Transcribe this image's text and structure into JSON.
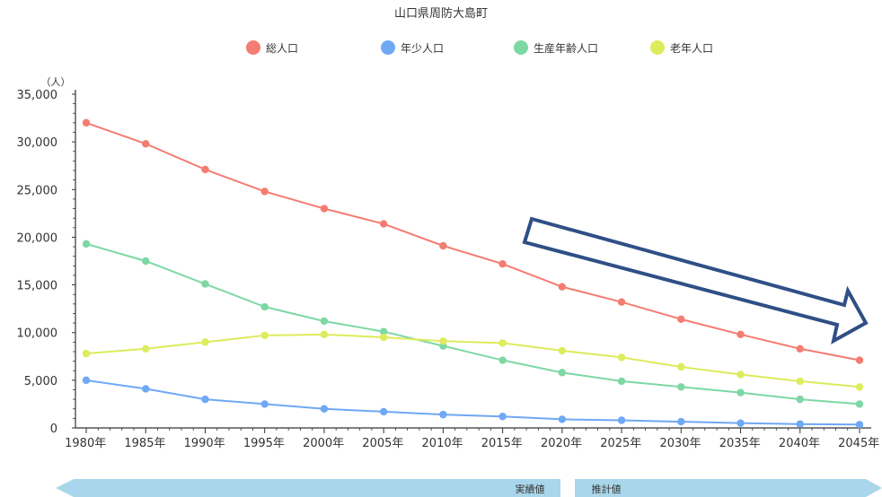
{
  "chart_data": {
    "type": "line",
    "title": "山口県周防大島町",
    "ylabel": "（人）",
    "xlabel": "",
    "ylim": [
      0,
      35000
    ],
    "yticks": [
      "0",
      "5,000",
      "10,000",
      "15,000",
      "20,000",
      "25,000",
      "30,000",
      "35,000"
    ],
    "categories": [
      "1980年",
      "1985年",
      "1990年",
      "1995年",
      "2000年",
      "2005年",
      "2010年",
      "2015年",
      "2020年",
      "2025年",
      "2030年",
      "2035年",
      "2040年",
      "2045年"
    ],
    "legend_position": "top",
    "grid": false,
    "series": [
      {
        "name": "総人口",
        "color": "#f47c72",
        "values": [
          32000,
          29800,
          27100,
          24800,
          23000,
          21400,
          19100,
          17200,
          14800,
          13200,
          11400,
          9800,
          8300,
          7100
        ]
      },
      {
        "name": "年少人口",
        "color": "#6fa8f5",
        "values": [
          5000,
          4100,
          3000,
          2500,
          2000,
          1700,
          1400,
          1200,
          900,
          800,
          650,
          500,
          400,
          350
        ]
      },
      {
        "name": "生産年齢人口",
        "color": "#7dd8a4",
        "values": [
          19300,
          17500,
          15100,
          12700,
          11200,
          10100,
          8600,
          7100,
          5800,
          4900,
          4300,
          3700,
          3000,
          2500
        ]
      },
      {
        "name": "老年人口",
        "color": "#dcec5c",
        "values": [
          7800,
          8300,
          9000,
          9700,
          9800,
          9500,
          9100,
          8900,
          8100,
          7400,
          6400,
          5600,
          4900,
          4300
        ]
      }
    ],
    "annotations": {
      "actual_label": "実績値",
      "forecast_label": "推計値",
      "trend_arrow": "declining-trend-arrow"
    }
  }
}
